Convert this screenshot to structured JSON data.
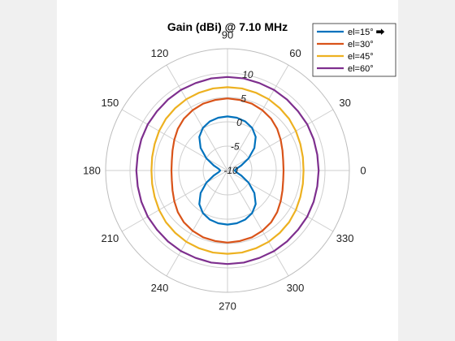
{
  "chart_data": {
    "type": "polar-line",
    "title": "Gain (dBi) @ 7.10 MHz",
    "theta_ticks_deg": [
      0,
      30,
      60,
      90,
      120,
      150,
      180,
      210,
      240,
      270,
      300,
      330
    ],
    "theta_tick_labels": [
      "0",
      "30",
      "60",
      "90",
      "120",
      "150",
      "180",
      "210",
      "240",
      "270",
      "300",
      "330"
    ],
    "r_ticks": [
      -10,
      -5,
      0,
      5,
      10
    ],
    "r_tick_labels": [
      "-10",
      "-5",
      "0",
      "5",
      "10"
    ],
    "rlim": [
      -10,
      15
    ],
    "grid": true,
    "legend": {
      "location": "top-right"
    },
    "series": [
      {
        "name": "el=15° ⮕",
        "color": "#0072BD",
        "theta_deg": [
          0,
          10,
          20,
          30,
          40,
          50,
          60,
          70,
          80,
          90,
          100,
          110,
          120,
          130,
          140,
          150,
          160,
          170,
          180,
          190,
          200,
          210,
          220,
          230,
          240,
          250,
          260,
          270,
          280,
          290,
          300,
          310,
          320,
          330,
          340,
          350,
          360
        ],
        "r_dBi": [
          -8.5,
          -8.2,
          -7.0,
          -5.0,
          -2.8,
          -1.0,
          0.1,
          0.7,
          1.0,
          1.1,
          1.0,
          0.7,
          0.1,
          -1.0,
          -2.8,
          -5.0,
          -7.0,
          -8.2,
          -8.5,
          -8.2,
          -7.0,
          -5.0,
          -2.8,
          -1.0,
          0.1,
          0.7,
          1.0,
          1.1,
          1.0,
          0.7,
          0.1,
          -1.0,
          -2.8,
          -5.0,
          -7.0,
          -8.2,
          -8.5
        ]
      },
      {
        "name": "el=30°",
        "color": "#D95319",
        "theta_deg": [
          0,
          10,
          20,
          30,
          40,
          50,
          60,
          70,
          80,
          90,
          100,
          110,
          120,
          130,
          140,
          150,
          160,
          170,
          180,
          190,
          200,
          210,
          220,
          230,
          240,
          250,
          260,
          270,
          280,
          290,
          300,
          310,
          320,
          330,
          340,
          350,
          360
        ],
        "r_dBi": [
          1.5,
          1.6,
          2.0,
          2.6,
          3.3,
          3.9,
          4.3,
          4.6,
          4.7,
          4.8,
          4.7,
          4.6,
          4.3,
          3.9,
          3.3,
          2.6,
          2.0,
          1.6,
          1.5,
          1.6,
          2.0,
          2.6,
          3.3,
          3.9,
          4.3,
          4.6,
          4.7,
          4.8,
          4.7,
          4.6,
          4.3,
          3.9,
          3.3,
          2.6,
          2.0,
          1.6,
          1.5
        ]
      },
      {
        "name": "el=45°",
        "color": "#EDB120",
        "theta_deg": [
          0,
          10,
          20,
          30,
          40,
          50,
          60,
          70,
          80,
          90,
          100,
          110,
          120,
          130,
          140,
          150,
          160,
          170,
          180,
          190,
          200,
          210,
          220,
          230,
          240,
          250,
          260,
          270,
          280,
          290,
          300,
          310,
          320,
          330,
          340,
          350,
          360
        ],
        "r_dBi": [
          5.6,
          5.7,
          5.9,
          6.2,
          6.5,
          6.7,
          6.9,
          7.0,
          7.1,
          7.1,
          7.1,
          7.0,
          6.9,
          6.7,
          6.5,
          6.2,
          5.9,
          5.7,
          5.6,
          5.7,
          5.9,
          6.2,
          6.5,
          6.7,
          6.9,
          7.0,
          7.1,
          7.1,
          7.1,
          7.0,
          6.9,
          6.7,
          6.5,
          6.2,
          5.9,
          5.7,
          5.6
        ]
      },
      {
        "name": "el=60°",
        "color": "#7E2F8E",
        "theta_deg": [
          0,
          10,
          20,
          30,
          40,
          50,
          60,
          70,
          80,
          90,
          100,
          110,
          120,
          130,
          140,
          150,
          160,
          170,
          180,
          190,
          200,
          210,
          220,
          230,
          240,
          250,
          260,
          270,
          280,
          290,
          300,
          310,
          320,
          330,
          340,
          350,
          360
        ],
        "r_dBi": [
          8.7,
          8.7,
          8.8,
          8.9,
          8.9,
          9.0,
          9.1,
          9.1,
          9.2,
          9.2,
          9.2,
          9.1,
          9.1,
          9.0,
          8.9,
          8.9,
          8.8,
          8.7,
          8.7,
          8.7,
          8.8,
          8.9,
          8.9,
          9.0,
          9.1,
          9.1,
          9.2,
          9.2,
          9.2,
          9.1,
          9.1,
          9.0,
          8.9,
          8.9,
          8.8,
          8.7,
          8.7
        ]
      }
    ]
  }
}
